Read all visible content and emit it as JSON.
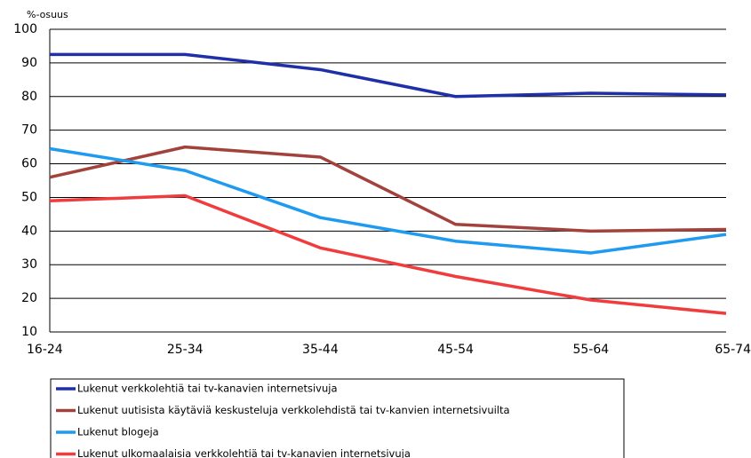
{
  "chart_data": {
    "type": "line",
    "y_label": "%-osuus",
    "categories": [
      "16-24",
      "25-34",
      "35-44",
      "45-54",
      "55-64",
      "65-74"
    ],
    "series": [
      {
        "name": "Lukenut verkkolehtiä tai tv-kanavien internetsivuja",
        "color": "#1f2fa8",
        "values": [
          92.5,
          92.5,
          88,
          80,
          81,
          80.5
        ]
      },
      {
        "name": "Lukenut uutisista käytäviä keskusteluja verkkolehdistä tai tv-kanvien internetsivuilta",
        "color": "#a3423c",
        "values": [
          56,
          65,
          62,
          42,
          40,
          40.5
        ]
      },
      {
        "name": "Lukenut blogeja",
        "color": "#1e9bf0",
        "values": [
          64.5,
          58,
          44,
          37,
          33.5,
          39
        ]
      },
      {
        "name": "Lukenut ulkomaalaisia verkkolehtiä tai tv-kanavien internetsivuja",
        "color": "#f03c3c",
        "values": [
          49,
          50.5,
          35,
          26.5,
          19.5,
          15.5
        ]
      }
    ],
    "ylim": [
      10,
      100
    ],
    "yticks": [
      10,
      20,
      30,
      40,
      50,
      60,
      70,
      80,
      90,
      100
    ],
    "grid": true
  }
}
